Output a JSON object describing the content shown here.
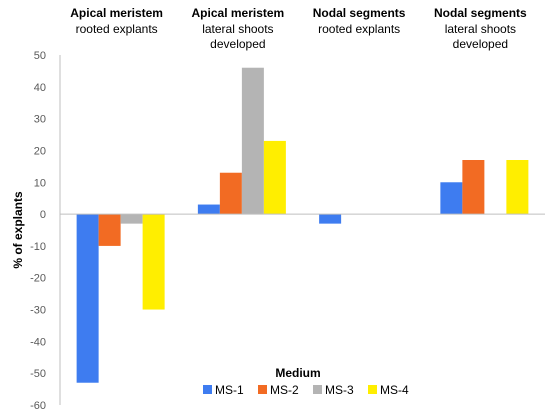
{
  "chart_data": {
    "type": "bar",
    "categories": [
      {
        "title": "Apical meristem",
        "subtitle": [
          "rooted explants"
        ]
      },
      {
        "title": "Apical meristem",
        "subtitle": [
          "lateral shoots",
          "developed"
        ]
      },
      {
        "title": "Nodal segments",
        "subtitle": [
          "rooted explants"
        ]
      },
      {
        "title": "Nodal segments",
        "subtitle": [
          "lateral shoots",
          "developed"
        ]
      }
    ],
    "series": [
      {
        "name": "MS-1",
        "color": "#3E7CF0",
        "values": [
          -53,
          3,
          -3,
          10
        ]
      },
      {
        "name": "MS-2",
        "color": "#F26B23",
        "values": [
          -10,
          13,
          0,
          17
        ]
      },
      {
        "name": "MS-3",
        "color": "#B4B4B4",
        "values": [
          -3,
          46,
          0,
          0
        ]
      },
      {
        "name": "MS-4",
        "color": "#FFEE00",
        "values": [
          -30,
          23,
          0,
          17
        ]
      }
    ],
    "xlabel": "Medium",
    "ylabel": "% of explants",
    "ylim": [
      -60,
      50
    ],
    "yticks": [
      50,
      40,
      30,
      20,
      10,
      0,
      -10,
      -20,
      -30,
      -40,
      -50,
      -60
    ],
    "grid": false,
    "legend": "bottom"
  }
}
